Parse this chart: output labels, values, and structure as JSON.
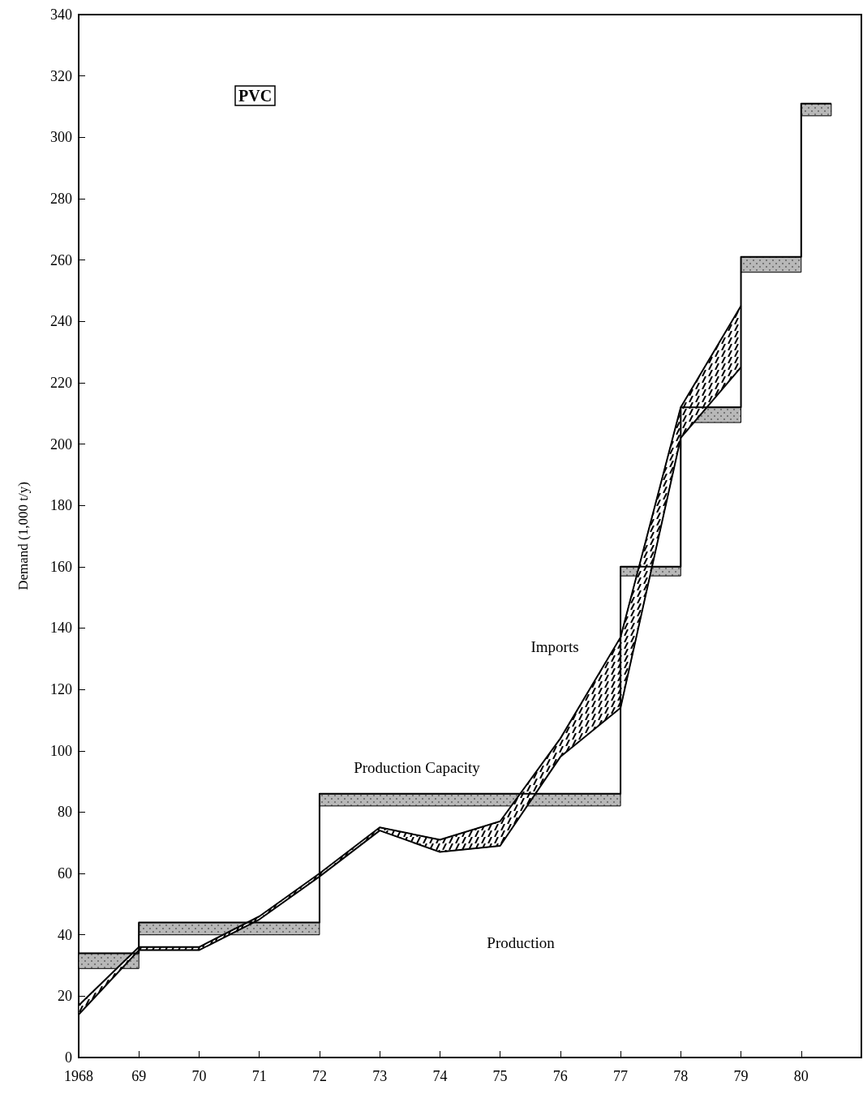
{
  "chart_data": {
    "type": "line",
    "title": "PVC",
    "ylabel": "Demand (1,000 t/y)",
    "xlim": [
      1968,
      1981
    ],
    "ylim": [
      0,
      340
    ],
    "xticks": [
      {
        "value": 1968,
        "label": "1968"
      },
      {
        "value": 1969,
        "label": "69"
      },
      {
        "value": 1970,
        "label": "70"
      },
      {
        "value": 1971,
        "label": "71"
      },
      {
        "value": 1972,
        "label": "72"
      },
      {
        "value": 1973,
        "label": "73"
      },
      {
        "value": 1974,
        "label": "74"
      },
      {
        "value": 1975,
        "label": "75"
      },
      {
        "value": 1976,
        "label": "76"
      },
      {
        "value": 1977,
        "label": "77"
      },
      {
        "value": 1978,
        "label": "78"
      },
      {
        "value": 1979,
        "label": "79"
      },
      {
        "value": 1980,
        "label": "80"
      }
    ],
    "yticks": [
      0,
      20,
      40,
      60,
      80,
      100,
      120,
      140,
      160,
      180,
      200,
      220,
      240,
      260,
      280,
      300,
      320,
      340
    ],
    "marker": "none",
    "line_style": "solid",
    "series": [
      {
        "type": "step",
        "color": "#000000",
        "x": [
          1968,
          1969,
          1972,
          1977,
          1978,
          1979,
          1980,
          1980.5
        ],
        "values": [
          34,
          44,
          86,
          160,
          212,
          261,
          311,
          311
        ],
        "lower": [
          29,
          40,
          82,
          157,
          207,
          256,
          307,
          307
        ],
        "upper": [
          34,
          44,
          86,
          160,
          212,
          261,
          311,
          311
        ]
      },
      {
        "color": "#000000",
        "x": [
          1968,
          1969,
          1970,
          1971,
          1972,
          1973,
          1974,
          1975,
          1976,
          1977,
          1978,
          1979
        ],
        "values": [
          17,
          36,
          36,
          46,
          60,
          75,
          71,
          77,
          104,
          137,
          212,
          245
        ],
        "lower": [
          14,
          35,
          35,
          45,
          59,
          74,
          67,
          69,
          98,
          114,
          202,
          225
        ],
        "upper": [
          17,
          36,
          36,
          46,
          60,
          75,
          71,
          77,
          104,
          137,
          212,
          245
        ]
      },
      {
        "color": "#000000",
        "x": [
          1968,
          1969,
          1970,
          1971,
          1972,
          1973,
          1974,
          1975,
          1976,
          1977,
          1978,
          1979
        ],
        "values": [
          14,
          35,
          35,
          45,
          59,
          74,
          67,
          69,
          98,
          114,
          202,
          225
        ]
      }
    ],
    "annotations": [
      "Production Capacity",
      "Imports",
      "Production"
    ]
  }
}
